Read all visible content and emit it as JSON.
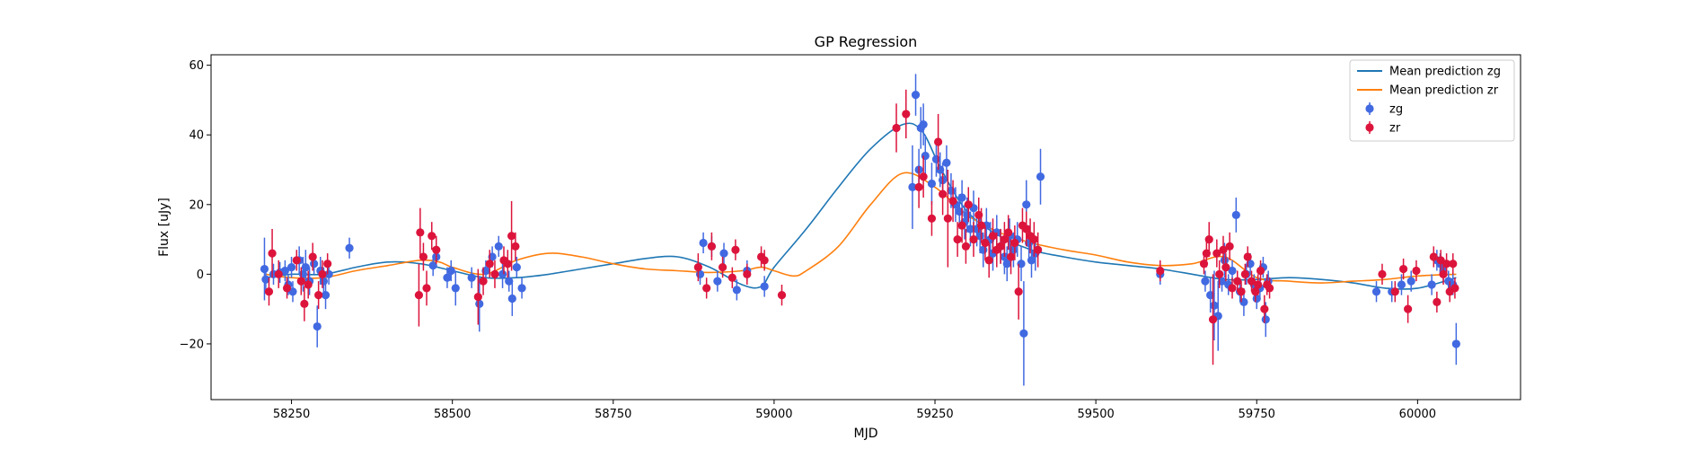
{
  "chart_data": {
    "type": "scatter",
    "title": "GP Regression",
    "xlabel": "MJD",
    "ylabel": "Flux [uJy]",
    "xlim": [
      58125,
      60160
    ],
    "ylim": [
      -36,
      63
    ],
    "xticks": [
      58250,
      58500,
      58750,
      59000,
      59250,
      59500,
      59750,
      60000
    ],
    "yticks": [
      -20,
      0,
      20,
      40,
      60
    ],
    "grid": false,
    "legend_position": "top-right",
    "colors": {
      "zg_line": "#1f77b4",
      "zr_line": "#ff7f0e",
      "zg_points": "#4169e1",
      "zr_points": "#dc143c"
    },
    "lines": [
      {
        "name": "Mean prediction zg",
        "x": [
          58210,
          58250,
          58300,
          58350,
          58400,
          58450,
          58500,
          58550,
          58600,
          58650,
          58700,
          58750,
          58800,
          58850,
          58900,
          58950,
          58980,
          59000,
          59050,
          59100,
          59150,
          59200,
          59230,
          59260,
          59300,
          59350,
          59400,
          59450,
          59500,
          59550,
          59600,
          59650,
          59700,
          59750,
          59800,
          59850,
          59900,
          59950,
          60000,
          60060
        ],
        "y": [
          -1,
          0,
          0,
          2,
          3.5,
          3,
          1,
          -1,
          -1,
          0,
          1.5,
          3,
          4.5,
          5,
          2,
          -3,
          -3.5,
          2,
          13,
          25,
          36,
          43,
          41,
          30,
          18,
          11,
          7,
          5,
          3.5,
          2.5,
          1.5,
          0,
          -1.5,
          -1.5,
          -1,
          -1.5,
          -2.5,
          -4,
          -4,
          -1
        ]
      },
      {
        "name": "Mean prediction zr",
        "x": [
          58210,
          58250,
          58300,
          58350,
          58400,
          58450,
          58480,
          58500,
          58550,
          58600,
          58650,
          58700,
          58750,
          58800,
          58850,
          58900,
          58950,
          58980,
          59000,
          59030,
          59050,
          59100,
          59150,
          59200,
          59250,
          59300,
          59350,
          59400,
          59450,
          59500,
          59550,
          59600,
          59650,
          59700,
          59750,
          59800,
          59850,
          59900,
          59950,
          60000,
          60060
        ],
        "y": [
          0,
          -1,
          -1,
          1,
          2.5,
          4,
          3.5,
          2,
          0,
          4,
          6,
          5,
          3,
          1.5,
          1,
          0.5,
          1,
          2,
          1,
          -0.5,
          1,
          8,
          20,
          29,
          25,
          17,
          12,
          9,
          7,
          5.5,
          3.5,
          2.5,
          3,
          5,
          -1,
          -2,
          -2.5,
          -2,
          -1.5,
          -0.5,
          0
        ]
      }
    ],
    "series": [
      {
        "name": "zg",
        "points": [
          [
            58208,
            1.5,
            9
          ],
          [
            58210,
            -1.5,
            4
          ],
          [
            58222,
            0,
            3
          ],
          [
            58232,
            0.5,
            3
          ],
          [
            58240,
            1,
            3
          ],
          [
            58245,
            -3,
            3
          ],
          [
            58250,
            2,
            3
          ],
          [
            58252,
            -5,
            3
          ],
          [
            58262,
            4,
            4
          ],
          [
            58268,
            0,
            5
          ],
          [
            58272,
            2,
            5
          ],
          [
            58278,
            -2,
            4
          ],
          [
            58285,
            3,
            3
          ],
          [
            58290,
            -15,
            6
          ],
          [
            58295,
            1,
            4
          ],
          [
            58300,
            -2,
            4
          ],
          [
            58303,
            -6,
            4
          ],
          [
            58308,
            0,
            3
          ],
          [
            58340,
            7.5,
            3
          ],
          [
            58470,
            2.5,
            3
          ],
          [
            58475,
            5,
            3
          ],
          [
            58492,
            -1,
            3
          ],
          [
            58498,
            1,
            3
          ],
          [
            58505,
            -4,
            5
          ],
          [
            58530,
            -1,
            3
          ],
          [
            58542,
            -8.5,
            8
          ],
          [
            58552,
            1,
            3
          ],
          [
            58562,
            5,
            3
          ],
          [
            58572,
            8,
            3
          ],
          [
            58578,
            0,
            4
          ],
          [
            58588,
            -2,
            3
          ],
          [
            58593,
            -7,
            5
          ],
          [
            58600,
            2,
            3
          ],
          [
            58608,
            -4,
            3
          ],
          [
            58885,
            0,
            3
          ],
          [
            58890,
            9,
            3
          ],
          [
            58903,
            8,
            3
          ],
          [
            58912,
            -2,
            3
          ],
          [
            58922,
            6,
            3
          ],
          [
            58942,
            -4.5,
            3
          ],
          [
            58958,
            1,
            3
          ],
          [
            58985,
            -3.5,
            3
          ],
          [
            59215,
            25,
            12
          ],
          [
            59220,
            51.5,
            6
          ],
          [
            59225,
            30,
            6
          ],
          [
            59228,
            42,
            6
          ],
          [
            59232,
            43,
            6
          ],
          [
            59235,
            34,
            6
          ],
          [
            59245,
            26,
            6
          ],
          [
            59252,
            33,
            5
          ],
          [
            59258,
            30,
            5
          ],
          [
            59262,
            27,
            5
          ],
          [
            59268,
            32,
            5
          ],
          [
            59275,
            24,
            5
          ],
          [
            59282,
            20,
            5
          ],
          [
            59288,
            18,
            5
          ],
          [
            59292,
            22,
            5
          ],
          [
            59296,
            15,
            5
          ],
          [
            59300,
            17,
            5
          ],
          [
            59305,
            13,
            5
          ],
          [
            59310,
            19,
            5
          ],
          [
            59315,
            13,
            5
          ],
          [
            59320,
            11,
            5
          ],
          [
            59325,
            7,
            5
          ],
          [
            59330,
            14,
            5
          ],
          [
            59336,
            10,
            5
          ],
          [
            59340,
            6,
            5
          ],
          [
            59346,
            12,
            5
          ],
          [
            59352,
            8,
            5
          ],
          [
            59358,
            5,
            5
          ],
          [
            59362,
            3,
            5
          ],
          [
            59366,
            11,
            5
          ],
          [
            59372,
            7,
            5
          ],
          [
            59378,
            10,
            5
          ],
          [
            59384,
            3,
            5
          ],
          [
            59388,
            -17,
            15
          ],
          [
            59392,
            20,
            7
          ],
          [
            59396,
            9,
            5
          ],
          [
            59400,
            4,
            5
          ],
          [
            59406,
            6,
            5
          ],
          [
            59414,
            28,
            8
          ],
          [
            59600,
            0,
            3
          ],
          [
            59670,
            -2,
            3
          ],
          [
            59678,
            -6,
            5
          ],
          [
            59684,
            -9,
            10
          ],
          [
            59690,
            -12,
            10
          ],
          [
            59696,
            -2,
            3
          ],
          [
            59700,
            4,
            5
          ],
          [
            59706,
            -3,
            3
          ],
          [
            59712,
            1,
            3
          ],
          [
            59718,
            17,
            5
          ],
          [
            59724,
            -5,
            3
          ],
          [
            59730,
            -8,
            4
          ],
          [
            59734,
            0,
            3
          ],
          [
            59740,
            3,
            3
          ],
          [
            59746,
            -3,
            3
          ],
          [
            59750,
            -7,
            3
          ],
          [
            59755,
            -4,
            3
          ],
          [
            59760,
            2,
            3
          ],
          [
            59764,
            -13,
            5
          ],
          [
            59768,
            -2,
            3
          ],
          [
            59936,
            -5,
            3
          ],
          [
            59960,
            -5,
            3
          ],
          [
            59975,
            -3,
            3
          ],
          [
            59990,
            -2,
            3
          ],
          [
            60022,
            -3,
            3
          ],
          [
            60030,
            4,
            3
          ],
          [
            60035,
            3,
            3
          ],
          [
            60040,
            1,
            3
          ],
          [
            60048,
            -2,
            3
          ],
          [
            60055,
            -3,
            3
          ],
          [
            60060,
            -20,
            6
          ]
        ]
      },
      {
        "name": "zr",
        "points": [
          [
            58215,
            -5,
            4
          ],
          [
            58220,
            6,
            7
          ],
          [
            58230,
            0,
            4
          ],
          [
            58243,
            -4,
            3
          ],
          [
            58258,
            4,
            3
          ],
          [
            58265,
            -2,
            4
          ],
          [
            58270,
            -8.5,
            5
          ],
          [
            58276,
            -3,
            4
          ],
          [
            58283,
            5,
            4
          ],
          [
            58292,
            -6,
            4
          ],
          [
            58298,
            0,
            4
          ],
          [
            58306,
            3,
            3
          ],
          [
            58448,
            -6,
            9
          ],
          [
            58450,
            12,
            7
          ],
          [
            58455,
            5,
            4
          ],
          [
            58460,
            -4,
            5
          ],
          [
            58468,
            11,
            4
          ],
          [
            58475,
            7,
            4
          ],
          [
            58540,
            -6.5,
            8
          ],
          [
            58548,
            -2,
            4
          ],
          [
            58558,
            3,
            4
          ],
          [
            58566,
            0,
            4
          ],
          [
            58580,
            4,
            4
          ],
          [
            58586,
            3,
            4
          ],
          [
            58592,
            11,
            10
          ],
          [
            58598,
            8,
            4
          ],
          [
            58882,
            2,
            4
          ],
          [
            58895,
            -4,
            3
          ],
          [
            58903,
            8,
            4
          ],
          [
            58920,
            2,
            3
          ],
          [
            58935,
            -1,
            3
          ],
          [
            58940,
            7,
            3
          ],
          [
            58958,
            0,
            3
          ],
          [
            58980,
            5,
            3
          ],
          [
            58985,
            4,
            3
          ],
          [
            59012,
            -6,
            3
          ],
          [
            59190,
            42,
            7
          ],
          [
            59205,
            46,
            7
          ],
          [
            59225,
            25,
            6
          ],
          [
            59232,
            28,
            6
          ],
          [
            59245,
            16,
            5
          ],
          [
            59255,
            38,
            8
          ],
          [
            59262,
            23,
            6
          ],
          [
            59270,
            16,
            14
          ],
          [
            59278,
            21,
            6
          ],
          [
            59285,
            10,
            5
          ],
          [
            59292,
            14,
            5
          ],
          [
            59298,
            8,
            5
          ],
          [
            59302,
            20,
            5
          ],
          [
            59310,
            10,
            5
          ],
          [
            59318,
            17,
            5
          ],
          [
            59322,
            14,
            5
          ],
          [
            59328,
            9,
            5
          ],
          [
            59334,
            4,
            5
          ],
          [
            59340,
            11,
            5
          ],
          [
            59346,
            7,
            5
          ],
          [
            59352,
            8,
            5
          ],
          [
            59358,
            10,
            5
          ],
          [
            59364,
            12,
            5
          ],
          [
            59368,
            5,
            5
          ],
          [
            59374,
            9,
            5
          ],
          [
            59380,
            -5,
            8
          ],
          [
            59386,
            14,
            5
          ],
          [
            59392,
            13,
            5
          ],
          [
            59398,
            11,
            5
          ],
          [
            59404,
            10,
            5
          ],
          [
            59410,
            7,
            5
          ],
          [
            59600,
            1,
            3
          ],
          [
            59668,
            3,
            3
          ],
          [
            59672,
            6,
            4
          ],
          [
            59676,
            10,
            5
          ],
          [
            59682,
            -13,
            13
          ],
          [
            59688,
            6,
            4
          ],
          [
            59692,
            0,
            4
          ],
          [
            59698,
            7,
            4
          ],
          [
            59702,
            2,
            4
          ],
          [
            59708,
            8,
            4
          ],
          [
            59712,
            -4,
            3
          ],
          [
            59720,
            -2,
            3
          ],
          [
            59726,
            -5,
            3
          ],
          [
            59732,
            0,
            3
          ],
          [
            59736,
            5,
            3
          ],
          [
            59742,
            -2,
            3
          ],
          [
            59748,
            -5,
            3
          ],
          [
            59752,
            -3,
            3
          ],
          [
            59756,
            1,
            3
          ],
          [
            59762,
            -10,
            4
          ],
          [
            59766,
            -3,
            3
          ],
          [
            59770,
            -4,
            3
          ],
          [
            59945,
            0,
            3
          ],
          [
            59965,
            -5,
            3
          ],
          [
            59978,
            1.5,
            3
          ],
          [
            59985,
            -10,
            4
          ],
          [
            59998,
            1,
            3
          ],
          [
            60025,
            5,
            3
          ],
          [
            60030,
            -8,
            3
          ],
          [
            60036,
            4,
            3
          ],
          [
            60040,
            0,
            3
          ],
          [
            60045,
            3,
            3
          ],
          [
            60050,
            -5,
            3
          ],
          [
            60055,
            3,
            3
          ],
          [
            60058,
            -4,
            3
          ]
        ]
      }
    ]
  }
}
